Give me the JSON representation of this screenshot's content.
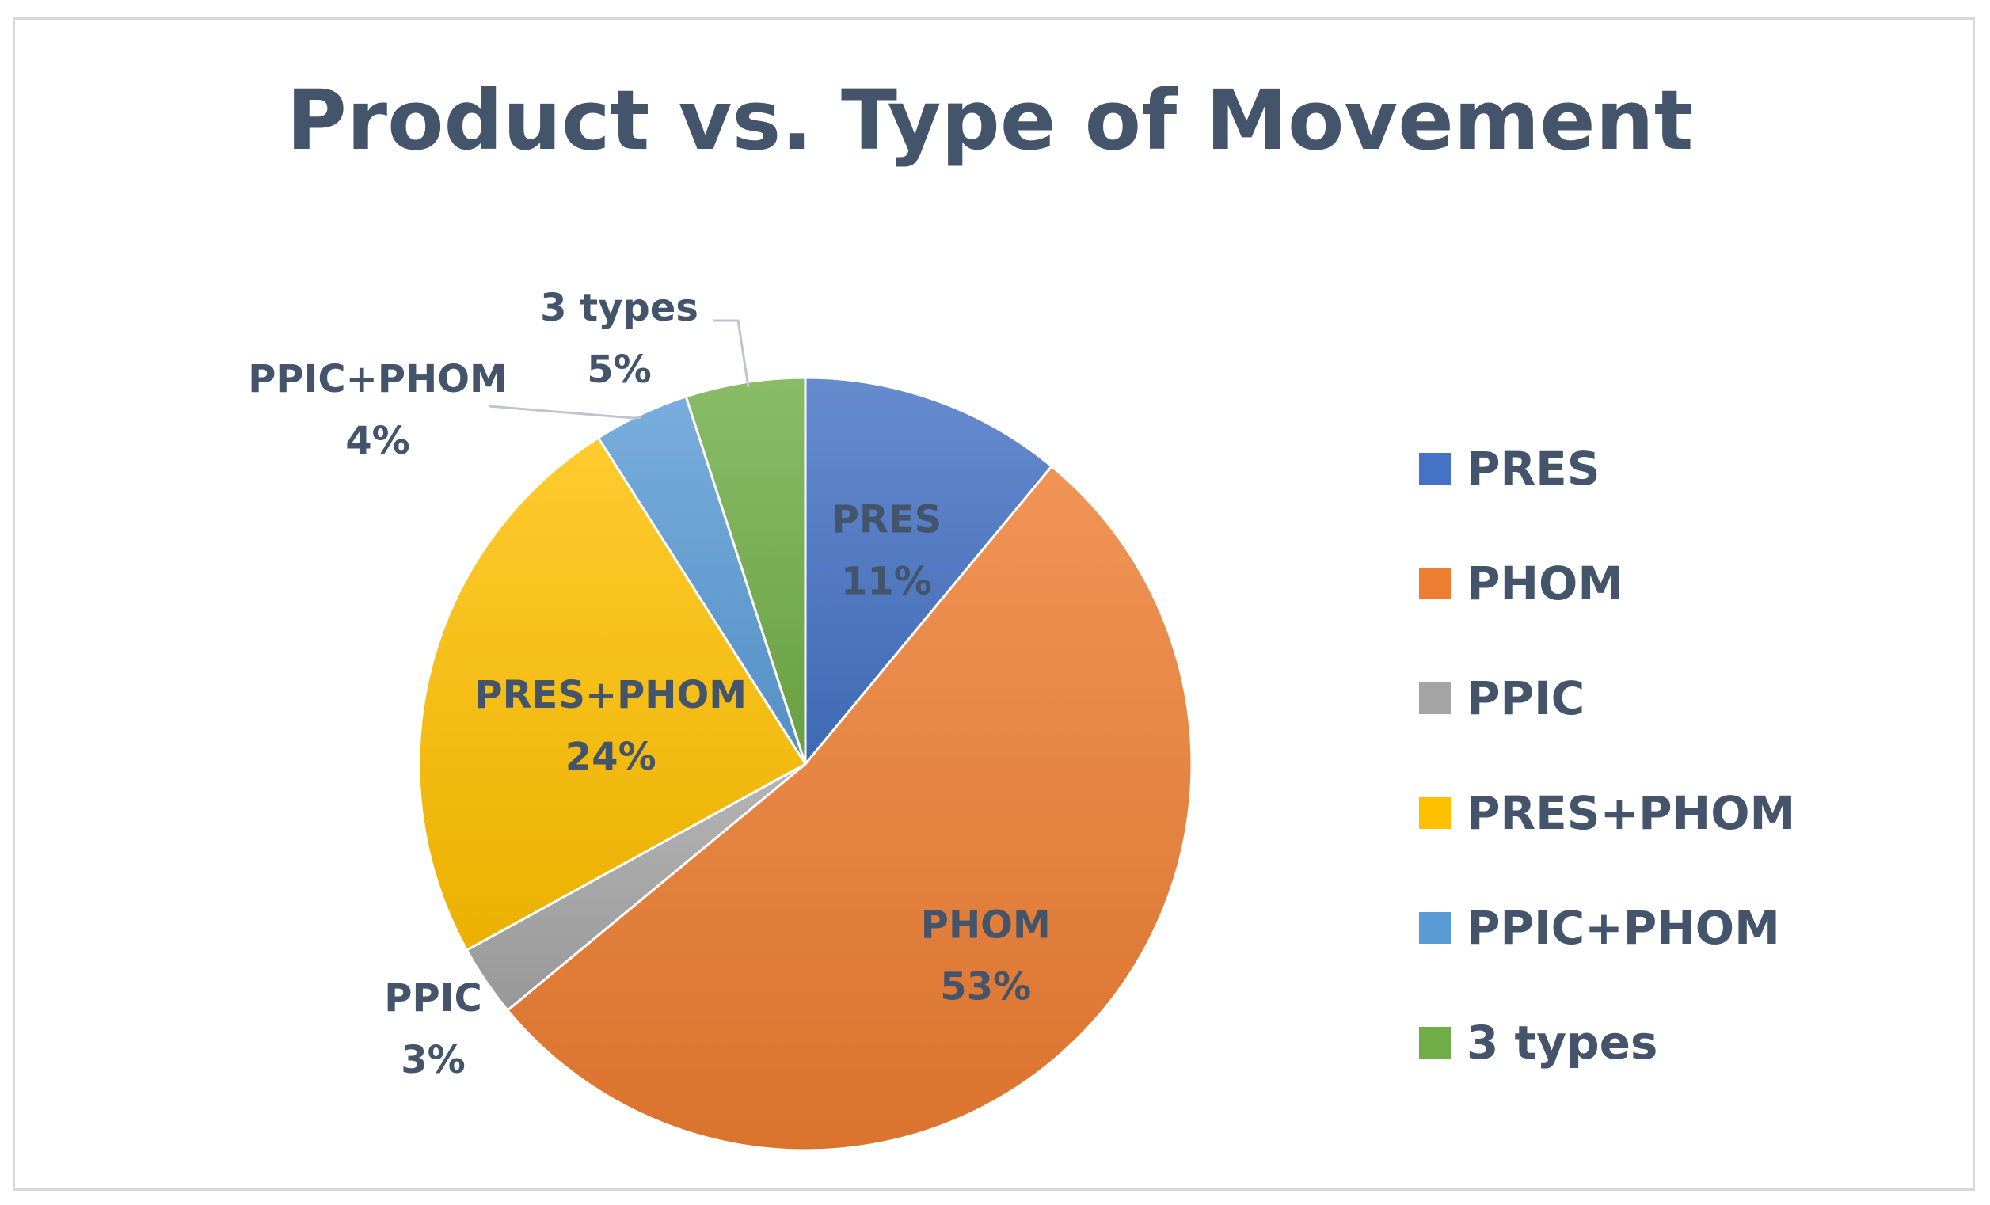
{
  "chart_data": {
    "type": "pie",
    "title": "Product vs. Type of Movement",
    "slices": [
      {
        "label": "PRES",
        "value": 11,
        "display": "11%",
        "color": "#4472c4"
      },
      {
        "label": "PHOM",
        "value": 53,
        "display": "53%",
        "color": "#ed7d31"
      },
      {
        "label": "PPIC",
        "value": 3,
        "display": "3%",
        "color": "#a5a5a5"
      },
      {
        "label": "PRES+PHOM",
        "value": 24,
        "display": "24%",
        "color": "#ffc000"
      },
      {
        "label": "PPIC+PHOM",
        "value": 4,
        "display": "4%",
        "color": "#5b9bd5"
      },
      {
        "label": "3 types",
        "value": 5,
        "display": "5%",
        "color": "#70ad47"
      }
    ],
    "legend_position": "right",
    "label_color": "#44546a"
  }
}
